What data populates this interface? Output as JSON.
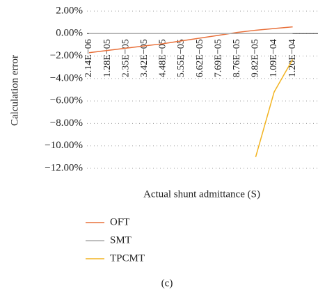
{
  "chart_data": {
    "type": "line",
    "y_axis_label": "Calculation error",
    "x_axis_label": "Actual shunt admittance (S)",
    "caption": "(c)",
    "categories": [
      "2.14E−06",
      "1.28E−05",
      "2.35E−05",
      "3.42E−05",
      "4.48E−05",
      "5.55E−05",
      "6.62E−05",
      "7.69E−05",
      "8.76E−05",
      "9.82E−05",
      "1.09E−04",
      "1.20E−04"
    ],
    "series": [
      {
        "name": "OFT",
        "color": "#e8703a",
        "values": [
          -1.7,
          -1.5,
          -1.3,
          -1.1,
          -0.9,
          -0.65,
          -0.4,
          -0.15,
          0.1,
          0.3,
          0.45,
          0.6
        ]
      },
      {
        "name": "SMT",
        "color": "#aaaaaa",
        "values": [
          0,
          0,
          0,
          0,
          0,
          0,
          0,
          0,
          0,
          0,
          0,
          0
        ]
      },
      {
        "name": "TPCMT",
        "color": "#f2b320",
        "values": [
          null,
          null,
          null,
          null,
          null,
          null,
          null,
          null,
          null,
          -11,
          -5.2,
          -2.3
        ]
      }
    ],
    "ylim": [
      -12,
      2
    ],
    "yticks": [
      {
        "value": 2,
        "label": "2.00%"
      },
      {
        "value": 0,
        "label": "0.00%"
      },
      {
        "value": -2,
        "label": "−2.00%"
      },
      {
        "value": -4,
        "label": "−4.00%"
      },
      {
        "value": -6,
        "label": "−6.00%"
      },
      {
        "value": -8,
        "label": "−8.00%"
      },
      {
        "value": -10,
        "label": "−10.00%"
      },
      {
        "value": -12,
        "label": "−12.00%"
      }
    ],
    "grid": true
  }
}
